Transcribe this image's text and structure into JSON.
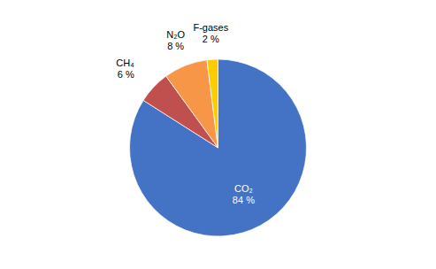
{
  "chart_data": {
    "type": "pie",
    "categories": [
      "CO₂",
      "CH₄",
      "N₂O",
      "F-gases"
    ],
    "values": [
      84,
      6,
      8,
      2
    ],
    "value_labels": [
      "84 %",
      "6 %",
      "8 %",
      "2 %"
    ],
    "colors": [
      "#4472C4",
      "#C0504D",
      "#F79646",
      "#FFCC00"
    ],
    "data_labels": true
  }
}
